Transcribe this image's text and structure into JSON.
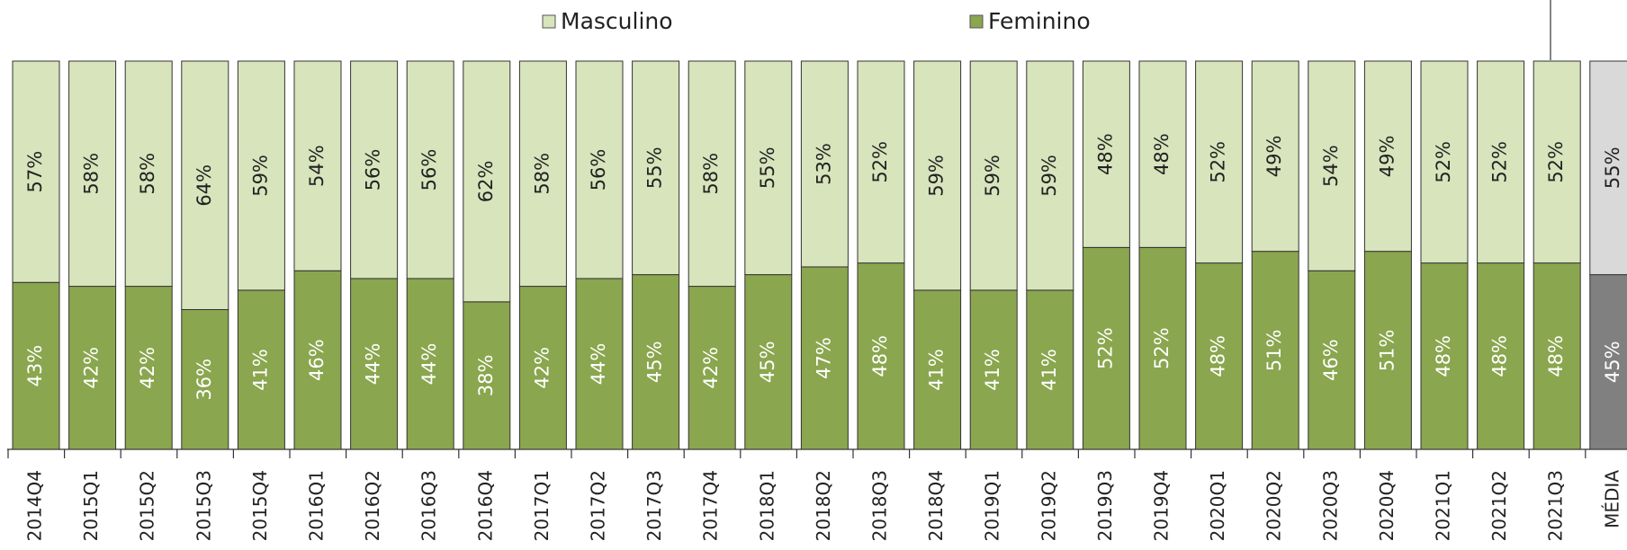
{
  "chart_data": {
    "type": "bar",
    "stacked": true,
    "categories": [
      "2014Q4",
      "2015Q1",
      "2015Q2",
      "2015Q3",
      "2015Q4",
      "2016Q1",
      "2016Q2",
      "2016Q3",
      "2016Q4",
      "2017Q1",
      "2017Q2",
      "2017Q3",
      "2017Q4",
      "2018Q1",
      "2018Q2",
      "2018Q3",
      "2018Q4",
      "2019Q1",
      "2019Q2",
      "2019Q3",
      "2019Q4",
      "2020Q1",
      "2020Q2",
      "2020Q3",
      "2020Q4",
      "2021Q1",
      "2021Q2",
      "2021Q3",
      "MÉDIA"
    ],
    "ylim": [
      0,
      100
    ],
    "series": [
      {
        "name": "Feminino",
        "color": "#8aa64e",
        "highlight_color": "#808080",
        "values": [
          43,
          42,
          42,
          36,
          41,
          46,
          44,
          44,
          38,
          42,
          44,
          45,
          42,
          45,
          47,
          48,
          41,
          41,
          41,
          52,
          52,
          48,
          51,
          46,
          51,
          48,
          48,
          48,
          45
        ],
        "value_labels": [
          "43%",
          "42%",
          "42%",
          "36%",
          "41%",
          "46%",
          "44%",
          "44%",
          "38%",
          "42%",
          "44%",
          "45%",
          "42%",
          "45%",
          "47%",
          "48%",
          "41%",
          "41%",
          "41%",
          "52%",
          "52%",
          "48%",
          "51%",
          "46%",
          "51%",
          "48%",
          "48%",
          "48%",
          "45%"
        ]
      },
      {
        "name": "Masculino",
        "color": "#d8e4bc",
        "highlight_color": "#d9d9d9",
        "values": [
          57,
          58,
          58,
          64,
          59,
          54,
          56,
          56,
          62,
          58,
          56,
          55,
          58,
          55,
          53,
          52,
          59,
          59,
          59,
          48,
          48,
          52,
          49,
          54,
          49,
          52,
          52,
          52,
          55
        ],
        "value_labels": [
          "57%",
          "58%",
          "58%",
          "64%",
          "59%",
          "54%",
          "56%",
          "56%",
          "62%",
          "58%",
          "56%",
          "55%",
          "58%",
          "55%",
          "53%",
          "52%",
          "59%",
          "59%",
          "59%",
          "48%",
          "48%",
          "52%",
          "49%",
          "54%",
          "49%",
          "52%",
          "52%",
          "52%",
          "55%"
        ]
      }
    ],
    "highlight_category": "MÉDIA"
  }
}
